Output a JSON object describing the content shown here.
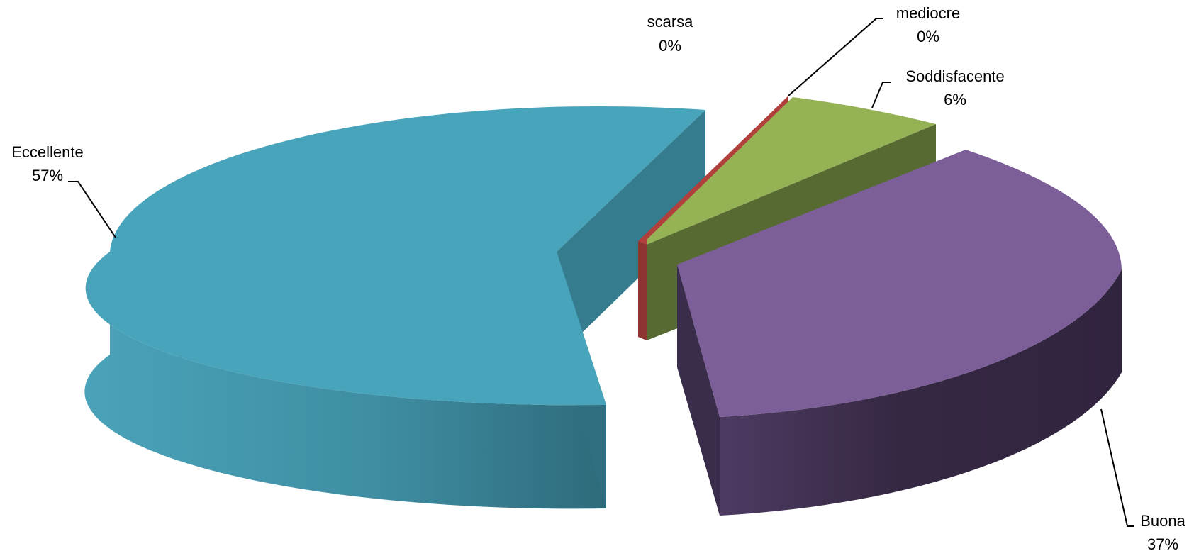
{
  "chart_data": {
    "type": "pie",
    "style": "3d-exploded",
    "title": "",
    "slices": [
      {
        "label": "scarsa",
        "value": 0,
        "display": "0%",
        "color": "#c0504d"
      },
      {
        "label": "mediocre",
        "value": 0.4,
        "display": "0%",
        "color": "#c0504d"
      },
      {
        "label": "Soddisfacente",
        "value": 6,
        "display": "6%",
        "color": "#9bbb59"
      },
      {
        "label": "Buona",
        "value": 37,
        "display": "37%",
        "color": "#8064a2"
      },
      {
        "label": "Eccellente",
        "value": 57,
        "display": "57%",
        "color": "#4bacc6"
      }
    ],
    "legend": "none",
    "data_labels": "outside with leader lines"
  }
}
